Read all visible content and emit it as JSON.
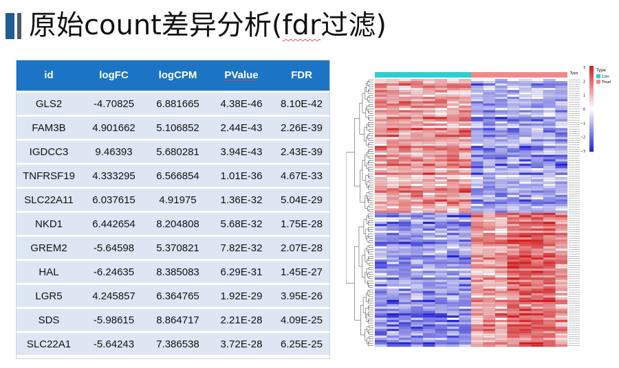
{
  "slide": {
    "title_main": "原始count差异分析(",
    "title_underlined": "fdr",
    "title_tail": "过滤)"
  },
  "table": {
    "headers": [
      "id",
      "logFC",
      "logCPM",
      "PValue",
      "FDR"
    ],
    "rows": [
      [
        "GLS2",
        "-4.70825",
        "6.881665",
        "4.38E-46",
        "8.10E-42"
      ],
      [
        "FAM3B",
        "4.901662",
        "5.106852",
        "2.44E-43",
        "2.26E-39"
      ],
      [
        "IGDCC3",
        "9.46393",
        "5.680281",
        "3.94E-43",
        "2.43E-39"
      ],
      [
        "TNFRSF19",
        "4.333295",
        "6.566854",
        "1.01E-36",
        "4.67E-33"
      ],
      [
        "SLC22A11",
        "6.037615",
        "4.91975",
        "1.36E-32",
        "5.04E-29"
      ],
      [
        "NKD1",
        "6.442654",
        "8.204808",
        "5.68E-32",
        "1.75E-28"
      ],
      [
        "GREM2",
        "-5.64598",
        "5.370821",
        "7.82E-32",
        "2.07E-28"
      ],
      [
        "HAL",
        "-6.24635",
        "8.385083",
        "6.29E-31",
        "1.45E-27"
      ],
      [
        "LGR5",
        "4.245857",
        "6.364765",
        "1.92E-29",
        "3.95E-26"
      ],
      [
        "SDS",
        "-5.98615",
        "8.864717",
        "2.21E-28",
        "4.09E-25"
      ],
      [
        "SLC22A1",
        "-5.64243",
        "7.386538",
        "3.72E-28",
        "6.25E-25"
      ]
    ]
  },
  "heatmap": {
    "annotation_label": "Type",
    "legend_title": "Type",
    "groups": [
      {
        "name": "Con",
        "color": "#2ecece",
        "count": 8
      },
      {
        "name": "Treat",
        "color": "#f08a8a",
        "count": 8
      }
    ],
    "scale_ticks": [
      "3",
      "2",
      "1",
      "0",
      "−1",
      "−2",
      "−3"
    ],
    "color_high": "#d7191c",
    "color_mid": "#ffffff",
    "color_low": "#2020d8",
    "n_rows": 120,
    "cluster_split_fraction": 0.5
  }
}
